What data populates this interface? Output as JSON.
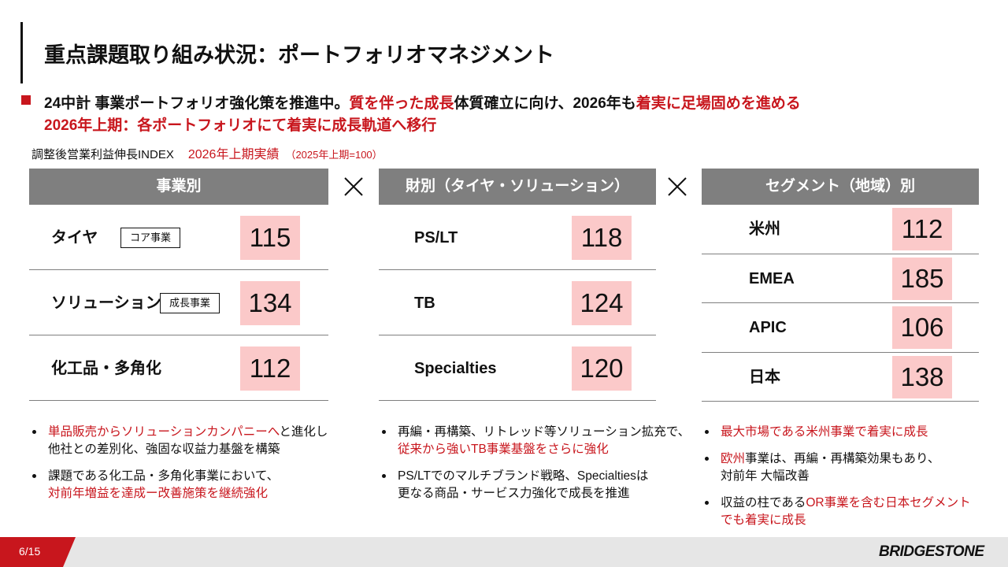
{
  "title": "重点課題取り組み状況：ポートフォリオマネジメント",
  "lead": [
    [
      {
        "text": "24中計 事業ポートフォリオ強化策を推進中。"
      },
      {
        "text": "質を伴った成長",
        "red": true
      },
      {
        "text": "体質確立に向け、2026年も"
      },
      {
        "text": "着実に足場固めを進める",
        "red": true
      }
    ],
    [
      {
        "text": "2026年上期：各ポートフォリオにて着実に成長軌道へ移行",
        "red": true
      }
    ]
  ],
  "index_label": [
    {
      "text": "調整後営業利益伸長INDEX"
    },
    {
      "text": "2026年上期実績",
      "red": true
    },
    {
      "text": "（2025年上期=100）",
      "red": true,
      "small": true
    }
  ],
  "panels": [
    {
      "header": "事業別",
      "rows": [
        {
          "label": "タイヤ",
          "tag": "コア事業",
          "value": 115
        },
        {
          "label": "ソリューション",
          "tag": "成長事業",
          "value": 134
        },
        {
          "label": "化工品・多角化",
          "value": 112
        }
      ],
      "bullets": [
        [
          [
            {
              "text": "単品販売からソリューションカンパニーへ",
              "red": true
            },
            {
              "text": "と進化し"
            }
          ],
          [
            {
              "text": "他社との差別化、強固な収益力基盤を構築"
            }
          ]
        ],
        [
          [
            {
              "text": "課題である化工品・多角化事業において、"
            }
          ],
          [
            {
              "text": "対前年増益を達成ー改善施策を継続強化",
              "red": true
            }
          ]
        ]
      ]
    },
    {
      "header": "財別（タイヤ・ソリューション）",
      "rows": [
        {
          "label": "PS/LT",
          "value": 118
        },
        {
          "label": "TB",
          "value": 124
        },
        {
          "label": "Specialties",
          "value": 120
        }
      ],
      "bullets": [
        [
          [
            {
              "text": "再編・再構築、リトレッド等ソリューション拡充で、"
            }
          ],
          [
            {
              "text": "従来から強いTB事業基盤をさらに強化",
              "red": true
            }
          ]
        ],
        [
          [
            {
              "text": "PS/LTでのマルチブランド戦略、Specialtiesは"
            }
          ],
          [
            {
              "text": "更なる商品・サービス力強化で成長を推進"
            }
          ]
        ]
      ]
    },
    {
      "header": "セグメント（地域）別",
      "rows": [
        {
          "label": "米州",
          "value": 112
        },
        {
          "label": "EMEA",
          "value": 185
        },
        {
          "label": "APIC",
          "value": 106
        },
        {
          "label": "日本",
          "value": 138
        }
      ],
      "bullets": [
        [
          [
            {
              "text": "最大市場である米州事業で着実に成長",
              "red": true
            }
          ]
        ],
        [
          [
            {
              "text": "欧州",
              "red": true
            },
            {
              "text": "事業は、再編・再構築効果もあり、"
            }
          ],
          [
            {
              "text": "対前年 大幅改善"
            }
          ]
        ],
        [
          [
            {
              "text": "収益の柱である"
            },
            {
              "text": "OR事業を含む日本セグメント",
              "red": true
            }
          ],
          [
            {
              "text": "でも着実に成長",
              "red": true
            }
          ]
        ]
      ]
    }
  ],
  "footer": {
    "page": "6/15",
    "brand": "BRIDGESTONE"
  }
}
